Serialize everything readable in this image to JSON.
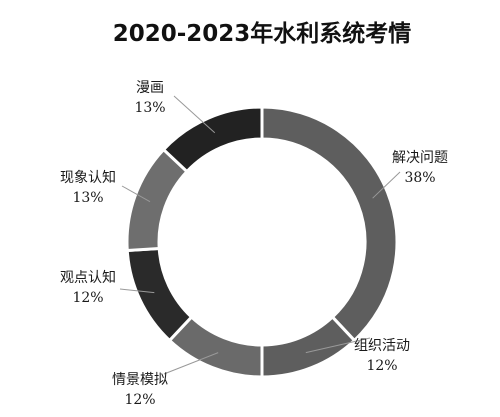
{
  "chart_data": {
    "type": "pie",
    "title": "2020-2023年水利系统考情",
    "categories": [
      "解决问题",
      "组织活动",
      "情景模拟",
      "观点认知",
      "现象认知",
      "漫画"
    ],
    "values": [
      38,
      12,
      12,
      12,
      13,
      13
    ],
    "value_labels": [
      "38%",
      "12%",
      "12%",
      "12%",
      "13%",
      "13%"
    ],
    "colors": [
      "#5e5e5e",
      "#5e5e5e",
      "#6a6a6a",
      "#2a2a2a",
      "#6e6e6e",
      "#222222"
    ],
    "donut": true,
    "start": "top",
    "direction": "clockwise",
    "legend": "none"
  }
}
